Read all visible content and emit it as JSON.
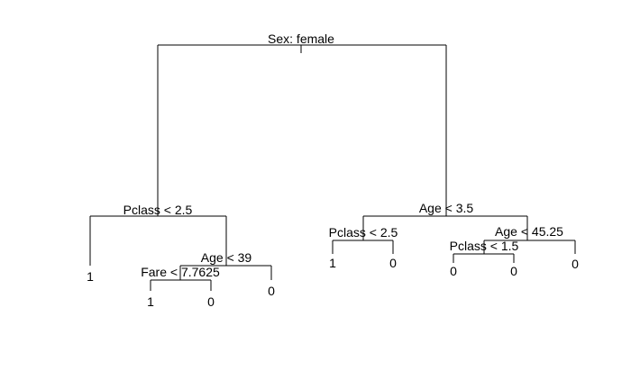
{
  "diagram": {
    "type": "decision-tree",
    "root": {
      "split": "Sex: female",
      "left": {
        "split": "Pclass < 2.5",
        "left": {
          "leaf": "1"
        },
        "right": {
          "split": "Age < 39",
          "left": {
            "split": "Fare < 7.7625",
            "left": {
              "leaf": "1"
            },
            "right": {
              "leaf": "0"
            }
          },
          "right": {
            "leaf": "0"
          }
        }
      },
      "right": {
        "split": "Age < 3.5",
        "left": {
          "split": "Pclass < 2.5",
          "left": {
            "leaf": "1"
          },
          "right": {
            "leaf": "0"
          }
        },
        "right": {
          "split": "Age < 45.25",
          "left": {
            "split": "Pclass < 1.5",
            "left": {
              "leaf": "0"
            },
            "right": {
              "leaf": "0"
            }
          },
          "right": {
            "leaf": "0"
          }
        }
      }
    }
  }
}
